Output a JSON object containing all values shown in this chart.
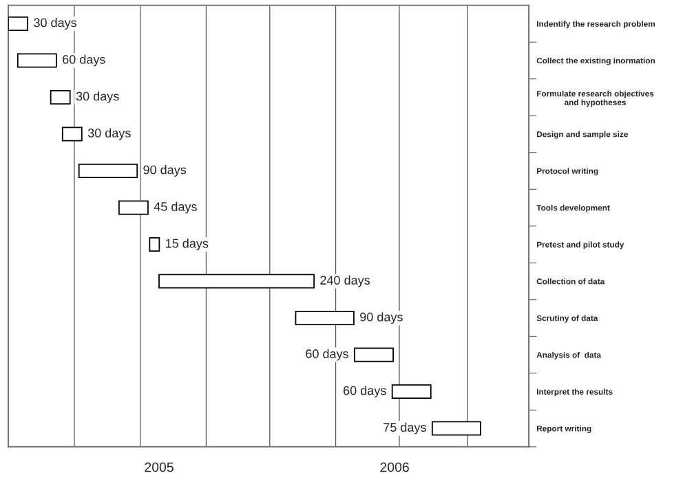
{
  "chart_data": {
    "type": "bar",
    "orientation": "horizontal",
    "categories": [
      "Indentify the research problem",
      "Collect the existing inormation",
      "Formulate research objectives\nand hypotheses",
      "Design and sample size",
      "Protocol writing",
      "Tools development",
      "Pretest and pilot study",
      "Collection of data",
      "Scrutiny of data",
      "Analysis of  data",
      "Interpret the results",
      "Report writing"
    ],
    "values": [
      0.082,
      0.164,
      0.082,
      0.082,
      0.247,
      0.123,
      0.041,
      0.658,
      0.247,
      0.164,
      0.164,
      0.205
    ],
    "base": [
      2004.36,
      2004.4,
      2004.54,
      2004.59,
      2004.66,
      2004.83,
      2004.96,
      2005.0,
      2005.58,
      2005.83,
      2005.99,
      2006.16
    ],
    "annotations": [
      {
        "text": "30 days",
        "x": 2004.442,
        "y": "Indentify the research problem"
      },
      {
        "text": "60 days",
        "x": 2004.564,
        "y": "Collect the existing inormation"
      },
      {
        "text": "30 days",
        "x": 2004.622,
        "y": "Formulate research objectives\nand hypotheses"
      },
      {
        "text": "30 days",
        "x": 2004.672,
        "y": "Design and sample size"
      },
      {
        "text": "90 days",
        "x": 2004.907,
        "y": "Protocol writing"
      },
      {
        "text": "45 days",
        "x": 2004.953,
        "y": "Tools development"
      },
      {
        "text": "15 days",
        "x": 2005.001,
        "y": "Pretest and pilot study"
      },
      {
        "text": "240 days",
        "x": 2005.658,
        "y": "Collection of data"
      },
      {
        "text": "90 days",
        "x": 2005.827,
        "y": "Scrutiny of data"
      },
      {
        "text": "60 days",
        "x": 2005.83,
        "y": "Analysis of  data"
      },
      {
        "text": "60 days",
        "x": 2005.99,
        "y": "Interpret the results"
      },
      {
        "text": "75 days",
        "x": 2006.16,
        "y": "Report writing"
      }
    ],
    "color": "#ffffff",
    "xlim": [
      2004.36,
      2006.57
    ],
    "xticks": [
      {
        "value": 2004.64,
        "label": null
      },
      {
        "value": 2004.92,
        "label": null
      },
      2005,
      {
        "value": 2005.2,
        "label": null
      },
      {
        "value": 2005.47,
        "label": null
      },
      {
        "value": 2005.75,
        "label": null
      },
      2006,
      {
        "value": 2006.02,
        "label": null
      },
      {
        "value": 2006.31,
        "label": null
      }
    ],
    "grid": "x",
    "legend": false
  }
}
